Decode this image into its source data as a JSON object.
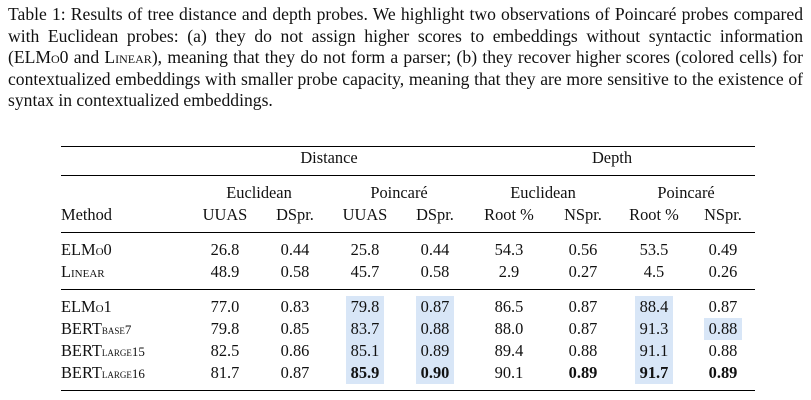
{
  "caption": {
    "label": "Table 1:",
    "text_pre": " Results of tree distance and depth probes. We highlight two observations of Poincaré probes compared with Euclidean probes: (a) they do not assign higher scores to embeddings without syntactic information (ELM",
    "elmo0_o": "o0",
    "text_mid": " and ",
    "linear": "Linear",
    "text_post": "), meaning that they do not form a parser; (b) they recover higher scores (colored cells) for contextualized embeddings with smaller probe capacity, meaning that they are more sensitive to the existence of syntax in contextualized embeddings."
  },
  "table": {
    "group_headers": [
      "Distance",
      "Depth"
    ],
    "sub_headers": [
      "Euclidean",
      "Poincaré",
      "Euclidean",
      "Poincaré"
    ],
    "method_header": "Method",
    "columns": [
      "UUAS",
      "DSpr.",
      "UUAS",
      "DSpr.",
      "Root %",
      "NSpr.",
      "Root %",
      "NSpr."
    ],
    "rows": [
      {
        "method_main": "ELM",
        "method_sc": "o0",
        "values": [
          "26.8",
          "0.44",
          "25.8",
          "0.44",
          "54.3",
          "0.56",
          "53.5",
          "0.49"
        ],
        "highlight": [
          false,
          false,
          false,
          false,
          false,
          false,
          false,
          false
        ],
        "bold": [
          false,
          false,
          false,
          false,
          false,
          false,
          false,
          false
        ]
      },
      {
        "method_main": "",
        "method_sc": "Linear",
        "values": [
          "48.9",
          "0.58",
          "45.7",
          "0.58",
          "2.9",
          "0.27",
          "4.5",
          "0.26"
        ],
        "highlight": [
          false,
          false,
          false,
          false,
          false,
          false,
          false,
          false
        ],
        "bold": [
          false,
          false,
          false,
          false,
          false,
          false,
          false,
          false
        ]
      },
      {
        "method_main": "ELM",
        "method_sc": "o1",
        "values": [
          "77.0",
          "0.83",
          "79.8",
          "0.87",
          "86.5",
          "0.87",
          "88.4",
          "0.87"
        ],
        "highlight": [
          false,
          false,
          true,
          true,
          false,
          false,
          true,
          false
        ],
        "bold": [
          false,
          false,
          false,
          false,
          false,
          false,
          false,
          false
        ]
      },
      {
        "method_main": "BERT",
        "method_sc": "base7",
        "values": [
          "79.8",
          "0.85",
          "83.7",
          "0.88",
          "88.0",
          "0.87",
          "91.3",
          "0.88"
        ],
        "highlight": [
          false,
          false,
          true,
          true,
          false,
          false,
          true,
          true
        ],
        "bold": [
          false,
          false,
          false,
          false,
          false,
          false,
          false,
          false
        ]
      },
      {
        "method_main": "BERT",
        "method_sc": "large15",
        "values": [
          "82.5",
          "0.86",
          "85.1",
          "0.89",
          "89.4",
          "0.88",
          "91.1",
          "0.88"
        ],
        "highlight": [
          false,
          false,
          true,
          true,
          false,
          false,
          true,
          false
        ],
        "bold": [
          false,
          false,
          false,
          false,
          false,
          false,
          false,
          false
        ]
      },
      {
        "method_main": "BERT",
        "method_sc": "large16",
        "values": [
          "81.7",
          "0.87",
          "85.9",
          "0.90",
          "90.1",
          "0.89",
          "91.7",
          "0.89"
        ],
        "highlight": [
          false,
          false,
          true,
          true,
          false,
          false,
          true,
          false
        ],
        "bold": [
          false,
          false,
          true,
          true,
          false,
          true,
          true,
          true
        ]
      }
    ]
  }
}
